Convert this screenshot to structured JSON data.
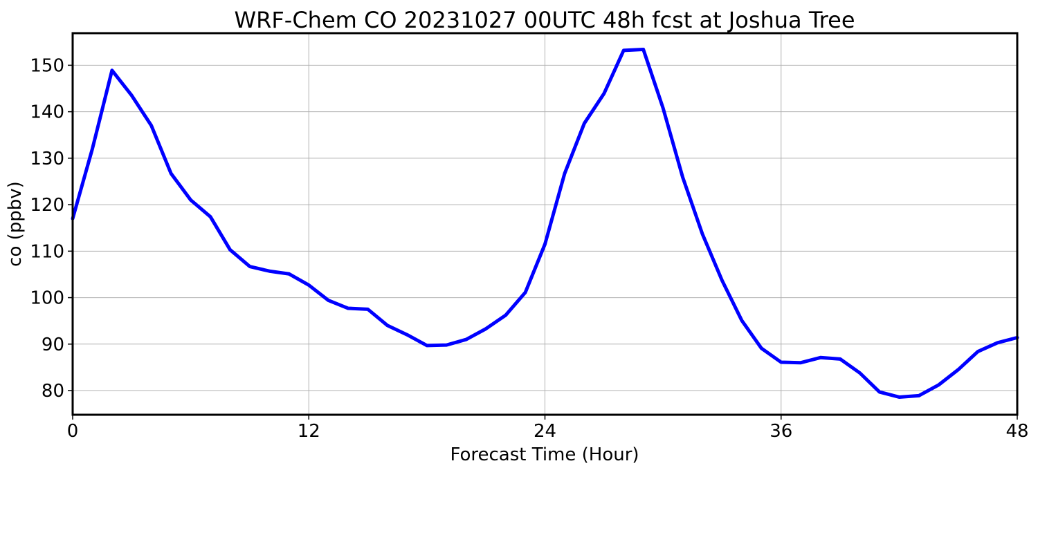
{
  "chart_data": {
    "type": "line",
    "title": "WRF-Chem CO  20231027 00UTC 48h fcst at Joshua Tree",
    "xlabel": "Forecast Time (Hour)",
    "ylabel": "co  (ppbv)",
    "xlim": [
      0,
      48
    ],
    "ylim": [
      74.8,
      156.9
    ],
    "xticks": [
      0,
      12,
      24,
      36,
      48
    ],
    "yticks": [
      80,
      90,
      100,
      110,
      120,
      130,
      140,
      150
    ],
    "grid": true,
    "line_color": "#0000ff",
    "series": [
      {
        "x": [
          0,
          1,
          2,
          3,
          4,
          5,
          6,
          7,
          8,
          9,
          10,
          11,
          12,
          13,
          14,
          15,
          16,
          17,
          18,
          19,
          20,
          21,
          22,
          23,
          24,
          25,
          26,
          27,
          28,
          29,
          30,
          31,
          32,
          33,
          34,
          35,
          36,
          37,
          38,
          39,
          40,
          41,
          42,
          43,
          44,
          45,
          46,
          47,
          48
        ],
        "values": [
          117.0,
          132.0,
          148.9,
          143.5,
          137.0,
          126.7,
          121.0,
          117.4,
          110.3,
          106.7,
          105.7,
          105.1,
          102.7,
          99.4,
          97.7,
          97.5,
          94.0,
          92.0,
          89.7,
          89.8,
          91.0,
          93.3,
          96.2,
          101.1,
          111.5,
          126.7,
          137.5,
          143.9,
          153.2,
          153.4,
          140.8,
          125.9,
          113.7,
          103.7,
          95.1,
          89.1,
          86.1,
          86.0,
          87.1,
          86.8,
          83.8,
          79.7,
          78.6,
          78.9,
          81.2,
          84.5,
          88.4,
          90.3,
          91.4
        ]
      }
    ]
  }
}
